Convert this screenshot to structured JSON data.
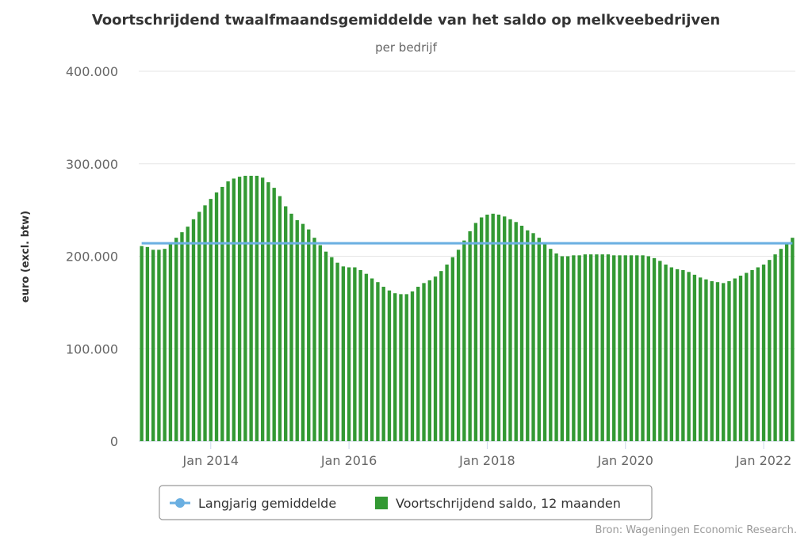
{
  "chart_data": {
    "type": "bar",
    "title": "Voortschrijdend twaalfmaandsgemiddelde van het saldo op melkveebedrijven",
    "subtitle": "per bedrijf",
    "ylabel": "euro (excl. btw)",
    "xlabel": "",
    "ylim": [
      0,
      400000
    ],
    "y_ticks": [
      0,
      100000,
      200000,
      300000,
      400000
    ],
    "y_tick_labels": [
      "0",
      "100.000",
      "200.000",
      "300.000",
      "400.000"
    ],
    "x_ticks": [
      "2014-01",
      "2016-01",
      "2018-01",
      "2020-01",
      "2022-01"
    ],
    "x_tick_labels": [
      "Jan 2014",
      "Jan 2016",
      "Jan 2018",
      "Jan 2020",
      "Jan 2022"
    ],
    "grid": "horizontal",
    "legend_position": "bottom",
    "start_month": "2013-01",
    "series": [
      {
        "name": "Voortschrijdend saldo, 12 maanden",
        "kind": "bar",
        "color": "#339933",
        "values": [
          211000,
          210000,
          207000,
          207000,
          208000,
          214000,
          220000,
          226000,
          232000,
          240000,
          248000,
          255000,
          262000,
          269000,
          275000,
          281000,
          284000,
          286000,
          287000,
          287000,
          287000,
          285000,
          280000,
          274000,
          265000,
          254000,
          246000,
          239000,
          235000,
          229000,
          220000,
          212000,
          205000,
          199000,
          193000,
          189000,
          188000,
          188000,
          185000,
          181000,
          176000,
          172000,
          167000,
          163000,
          160000,
          159000,
          159000,
          162000,
          167000,
          171000,
          174000,
          178000,
          184000,
          191000,
          199000,
          207000,
          217000,
          227000,
          236000,
          242000,
          245000,
          246000,
          245000,
          243000,
          240000,
          237000,
          233000,
          228000,
          225000,
          220000,
          214000,
          208000,
          203000,
          200000,
          200000,
          201000,
          201000,
          202000,
          202000,
          202000,
          202000,
          202000,
          201000,
          201000,
          201000,
          201000,
          201000,
          201000,
          200000,
          198000,
          195000,
          191000,
          188000,
          186000,
          185000,
          183000,
          180000,
          177000,
          175000,
          173000,
          172000,
          171000,
          173000,
          176000,
          179000,
          182000,
          185000,
          188000,
          191000,
          196000,
          202000,
          208000,
          214000,
          220000
        ]
      },
      {
        "name": "Langjarig gemiddelde",
        "kind": "line",
        "color": "#6aafe1",
        "value": 214000
      }
    ],
    "credits": "Bron: Wageningen Economic Research."
  }
}
